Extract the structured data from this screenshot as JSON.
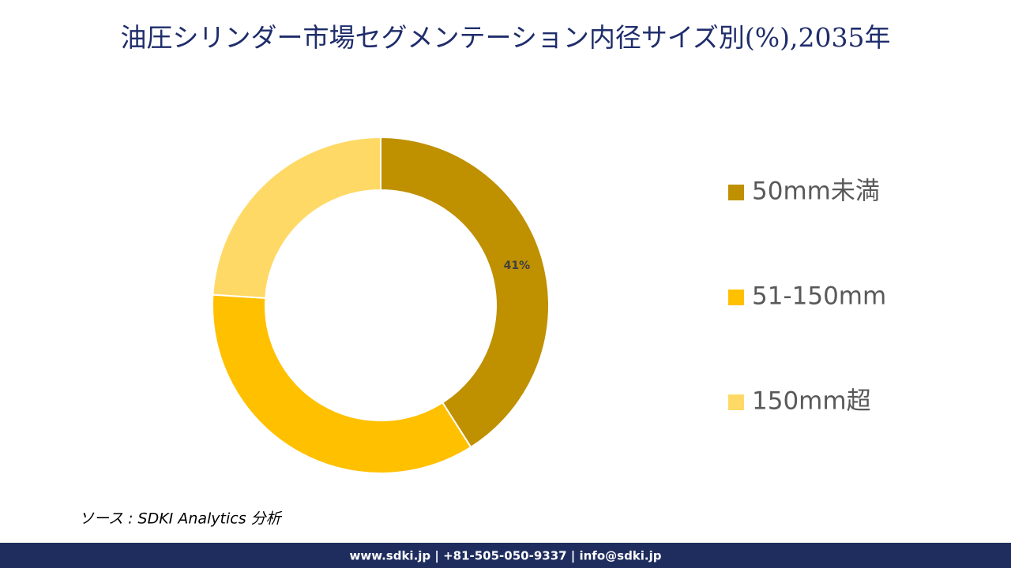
{
  "chart_data": {
    "type": "pie",
    "title": "油圧シリンダー市場セグメンテーション内径サイズ別(%),2035年",
    "categories": [
      "50mm未満",
      "51-150mm",
      "150mm超"
    ],
    "values": [
      41,
      35,
      24
    ],
    "value_labels": [
      "41%",
      null,
      null
    ],
    "colors": [
      "#bf9000",
      "#ffc000",
      "#ffd966"
    ],
    "source": "ソース : SDKI Analytics 分析",
    "footer": "www.sdki.jp | +81-505-050-9337 | info@sdki.jp"
  }
}
